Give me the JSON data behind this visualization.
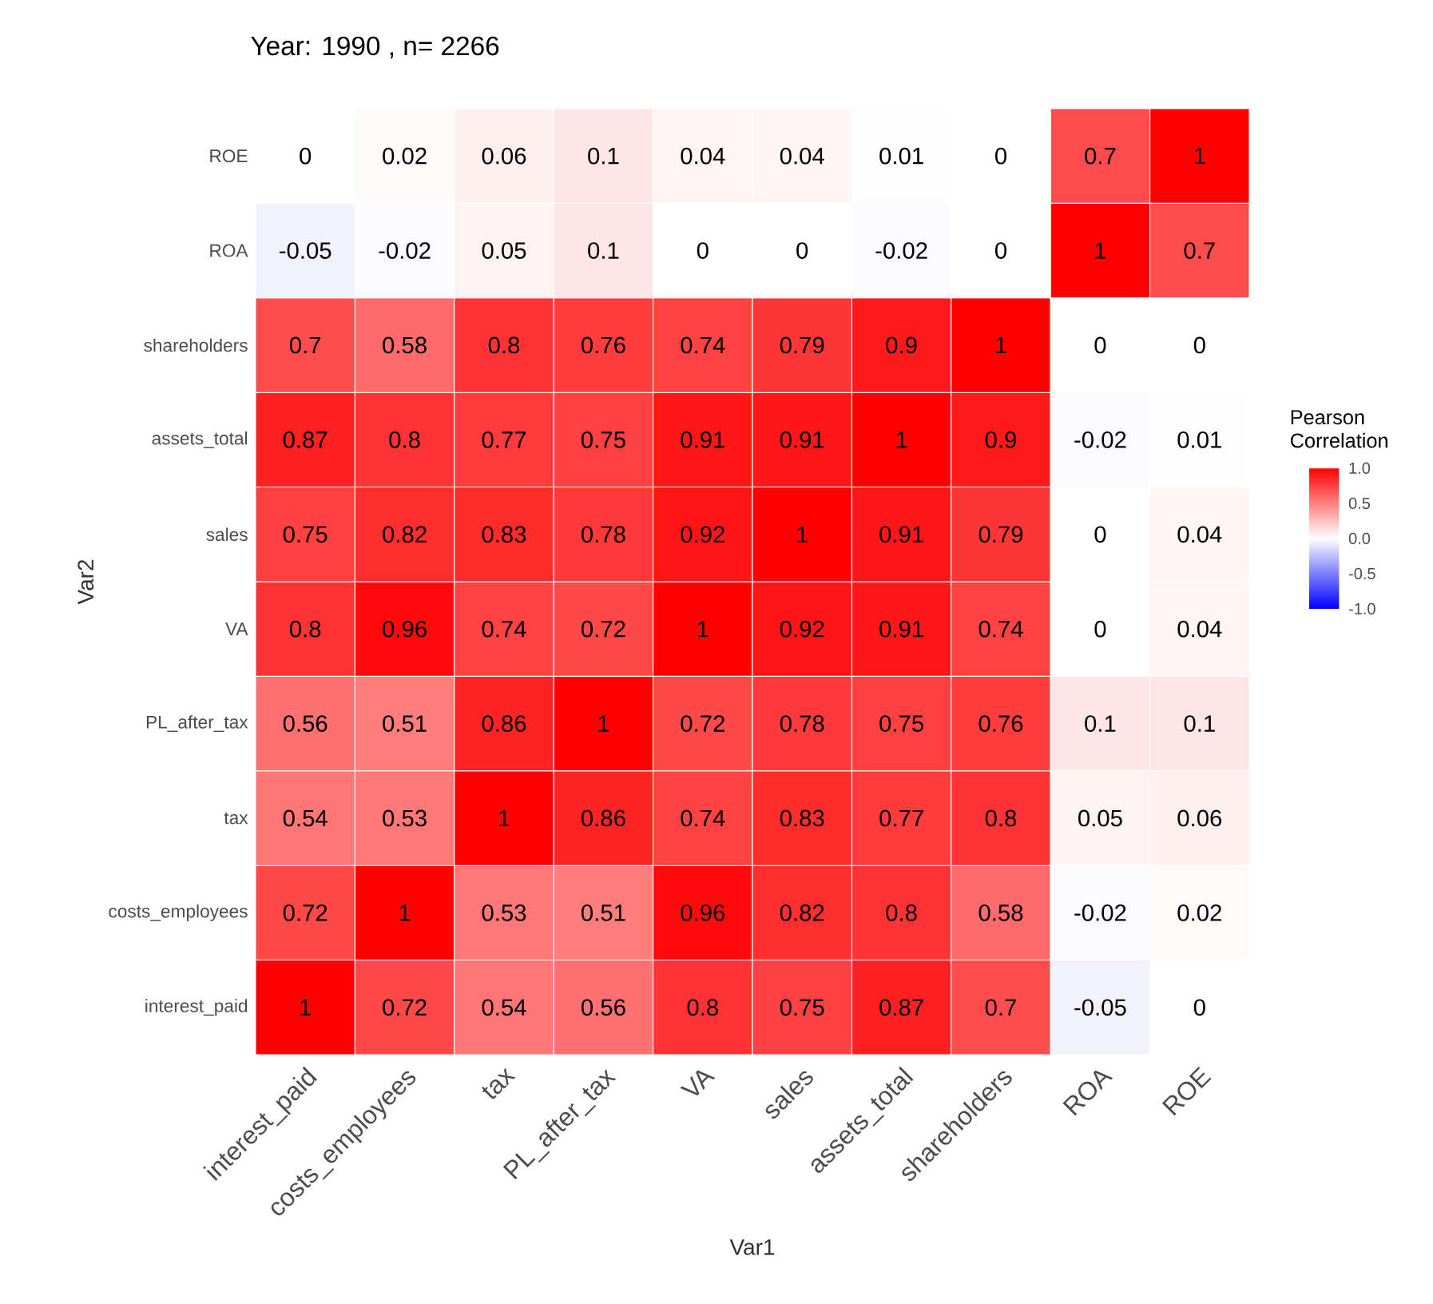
{
  "chart_data": {
    "type": "heatmap",
    "title": "Year: 1990 , n= 2266",
    "xlabel": "Var1",
    "ylabel": "Var2",
    "clabel": "Pearson Correlation",
    "categories": [
      "interest_paid",
      "costs_employees",
      "tax",
      "PL_after_tax",
      "VA",
      "sales",
      "assets_total",
      "shareholders",
      "ROA",
      "ROE"
    ],
    "y_categories": [
      "ROE",
      "ROA",
      "shareholders",
      "assets_total",
      "sales",
      "VA",
      "PL_after_tax",
      "tax",
      "costs_employees",
      "interest_paid"
    ],
    "cells": [
      [
        0,
        0.02,
        0.06,
        0.1,
        0.04,
        0.04,
        0.01,
        0,
        0.7,
        1
      ],
      [
        -0.05,
        -0.02,
        0.05,
        0.1,
        0,
        0,
        -0.02,
        0,
        1,
        0.7
      ],
      [
        0.7,
        0.58,
        0.8,
        0.76,
        0.74,
        0.79,
        0.9,
        1,
        0,
        0
      ],
      [
        0.87,
        0.8,
        0.77,
        0.75,
        0.91,
        0.91,
        1,
        0.9,
        -0.02,
        0.01
      ],
      [
        0.75,
        0.82,
        0.83,
        0.78,
        0.92,
        1,
        0.91,
        0.79,
        0,
        0.04
      ],
      [
        0.8,
        0.96,
        0.74,
        0.72,
        1,
        0.92,
        0.91,
        0.74,
        0,
        0.04
      ],
      [
        0.56,
        0.51,
        0.86,
        1,
        0.72,
        0.78,
        0.75,
        0.76,
        0.1,
        0.1
      ],
      [
        0.54,
        0.53,
        1,
        0.86,
        0.74,
        0.83,
        0.77,
        0.8,
        0.05,
        0.06
      ],
      [
        0.72,
        1,
        0.53,
        0.51,
        0.96,
        0.82,
        0.8,
        0.58,
        -0.02,
        0.02
      ],
      [
        1,
        0.72,
        0.54,
        0.56,
        0.8,
        0.75,
        0.87,
        0.7,
        -0.05,
        0
      ]
    ],
    "clim": [
      -1,
      1
    ],
    "cticks": [
      {
        "value": 1,
        "label": "1.0"
      },
      {
        "value": 0.5,
        "label": "0.5"
      },
      {
        "value": 0,
        "label": "0.0"
      },
      {
        "value": -0.5,
        "label": "-0.5"
      },
      {
        "value": -1,
        "label": "-1.0"
      }
    ],
    "data_labels": true
  }
}
